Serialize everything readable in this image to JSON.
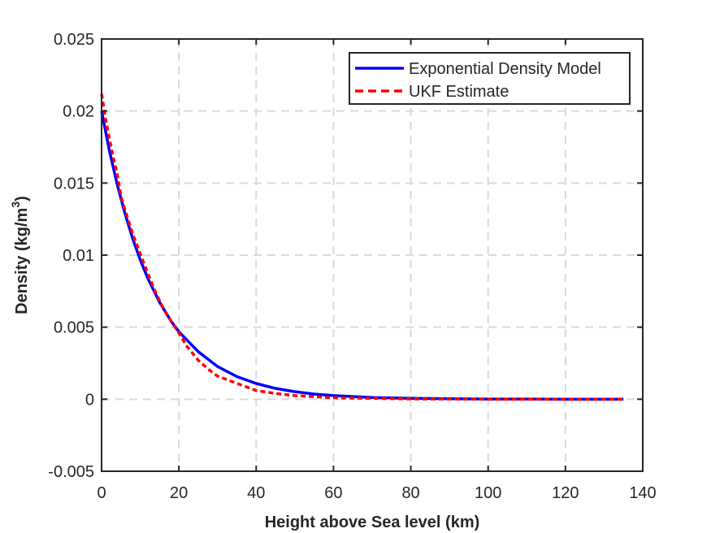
{
  "chart_data": {
    "type": "line",
    "title": "",
    "xlabel": "Height above Sea level (km)",
    "ylabel": "Density (kg/m",
    "ylabel_superscript": "3",
    "ylabel_suffix": ")",
    "xlim": [
      0,
      140
    ],
    "ylim": [
      -0.005,
      0.025
    ],
    "xticks": [
      0,
      20,
      40,
      60,
      80,
      100,
      120,
      140
    ],
    "xtick_labels": [
      "0",
      "20",
      "40",
      "60",
      "80",
      "100",
      "120",
      "140"
    ],
    "yticks": [
      -0.005,
      0,
      0.005,
      0.01,
      0.015,
      0.02,
      0.025
    ],
    "ytick_labels": [
      "-0.005",
      "0",
      "0.005",
      "0.01",
      "0.015",
      "0.02",
      "0.025"
    ],
    "grid": true,
    "legend_position": "top-right",
    "series": [
      {
        "name": "Exponential Density Model",
        "color": "#0000ff",
        "style": "solid",
        "x": [
          0,
          2,
          4,
          6,
          8,
          10,
          12,
          15,
          18,
          20,
          25,
          30,
          35,
          40,
          45,
          50,
          55,
          60,
          70,
          80,
          90,
          100,
          110,
          120,
          135
        ],
        "y": [
          0.02,
          0.01729,
          0.01496,
          0.01294,
          0.01119,
          0.00968,
          0.00837,
          0.00673,
          0.00541,
          0.00468,
          0.0033,
          0.00227,
          0.00157,
          0.00109,
          0.00075,
          0.00052,
          0.00036,
          0.00025,
          0.00012,
          6e-05,
          3e-05,
          1e-05,
          1e-05,
          0.0,
          0.0
        ]
      },
      {
        "name": "UKF Estimate",
        "color": "#ff0000",
        "style": "dashed",
        "x": [
          0,
          1,
          2,
          3,
          4,
          5,
          6,
          8,
          10,
          12,
          14,
          16,
          18,
          20,
          22,
          25,
          28,
          30,
          35,
          40,
          45,
          50,
          60,
          80,
          100,
          120,
          135
        ],
        "y": [
          0.0212,
          0.0195,
          0.0181,
          0.0168,
          0.0157,
          0.0141,
          0.0132,
          0.0115,
          0.0101,
          0.0087,
          0.0074,
          0.0063,
          0.0054,
          0.0046,
          0.0037,
          0.0027,
          0.002,
          0.0016,
          0.0011,
          0.0006,
          0.0004,
          0.00025,
          0.0001,
          2e-05,
          0.0,
          0.0,
          0.0
        ]
      }
    ]
  }
}
